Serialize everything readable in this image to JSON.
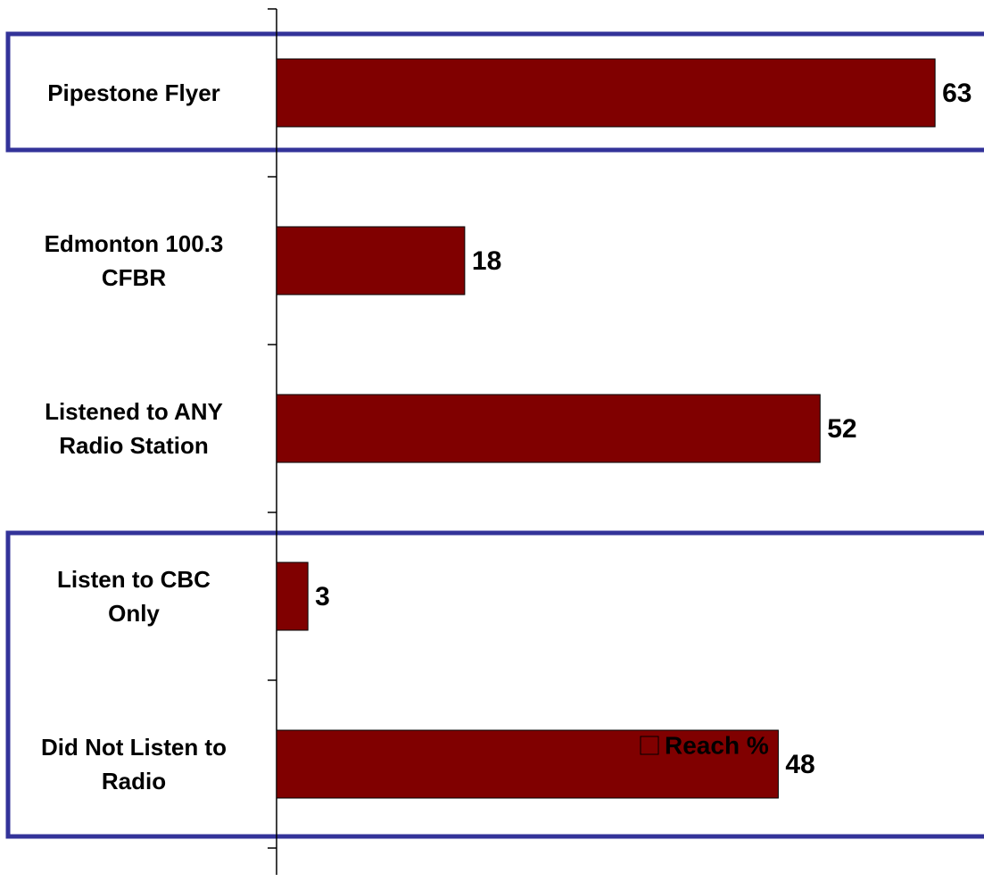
{
  "chart_data": {
    "type": "bar",
    "orientation": "horizontal",
    "categories": [
      "Pipestone Flyer",
      "Edmonton 100.3\nCFBR",
      "Listened to ANY\nRadio Station",
      "Listen to CBC\nOnly",
      "Did Not Listen to\nRadio"
    ],
    "series": [
      {
        "name": "Reach %",
        "color": "#800000",
        "values": [
          63,
          18,
          52,
          3,
          48
        ]
      }
    ],
    "xlim": [
      0,
      67
    ]
  }
}
